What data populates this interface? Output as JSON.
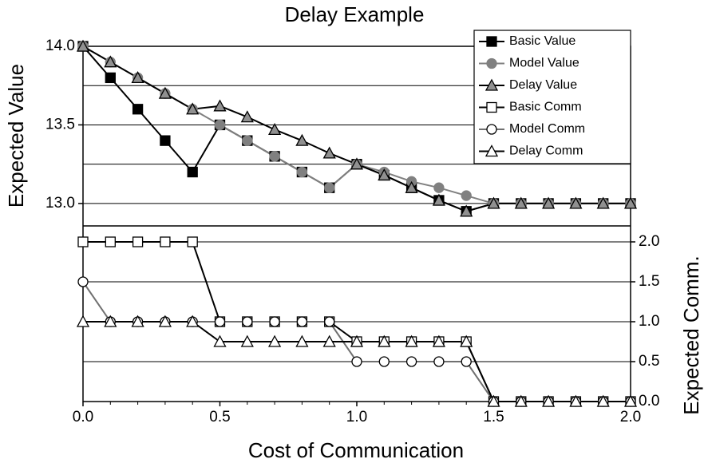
{
  "chart_data": {
    "type": "line",
    "title": "Delay Example",
    "xlabel": "Cost of Communication",
    "ylabel": "Expected Value",
    "y2label": "Expected Comm.",
    "x": [
      0,
      0.1,
      0.2,
      0.3,
      0.4,
      0.5,
      0.6,
      0.7,
      0.8,
      0.9,
      1.0,
      1.1,
      1.2,
      1.3,
      1.4,
      1.5,
      1.6,
      1.7,
      1.8,
      1.9,
      2.0
    ],
    "xlim": [
      0,
      2.0
    ],
    "xticks": [
      {
        "value": 0,
        "label": "0.0"
      },
      0.5,
      {
        "value": 1,
        "label": "1.0"
      },
      1.5,
      {
        "value": 2,
        "label": "2.0"
      }
    ],
    "ylim": [
      11.74,
      14.0
    ],
    "yticks": [
      {
        "value": 13,
        "label": "13.0"
      },
      13.5,
      {
        "value": 14,
        "label": "14.0"
      }
    ],
    "yminor": [
      13.25,
      13.75
    ],
    "y2lim": [
      0,
      4.45
    ],
    "y2ticks": [
      {
        "value": 0,
        "label": "0.0"
      },
      0.5,
      {
        "value": 1,
        "label": "1.0"
      },
      1.5,
      {
        "value": 2,
        "label": "2.0"
      }
    ],
    "grid": true,
    "legend": "upper right",
    "series": [
      {
        "name": "Basic Value",
        "color": "#000000",
        "marker": "square",
        "marker_fill": "#000000",
        "values": [
          14.0,
          13.8,
          13.6,
          13.4,
          13.2,
          13.5,
          13.4,
          13.3,
          13.2,
          13.1,
          13.25,
          13.18,
          13.1,
          13.02,
          12.95,
          13,
          13,
          13,
          13,
          13,
          13
        ]
      },
      {
        "name": "Model Value",
        "color": "#808080",
        "marker": "circle",
        "marker_fill": "#808080",
        "values": [
          14.0,
          13.9,
          13.8,
          13.7,
          13.6,
          13.5,
          13.4,
          13.3,
          13.2,
          13.1,
          13.25,
          13.2,
          13.14,
          13.1,
          13.05,
          13,
          13,
          13,
          13,
          13,
          13
        ]
      },
      {
        "name": "Delay Value",
        "color": "#000000",
        "marker": "triangle",
        "marker_fill": "#909090",
        "values": [
          14.0,
          13.9,
          13.8,
          13.7,
          13.6,
          13.62,
          13.55,
          13.47,
          13.4,
          13.32,
          13.25,
          13.18,
          13.1,
          13.02,
          12.95,
          13,
          13,
          13,
          13,
          13,
          13
        ]
      },
      {
        "name": "Basic Comm",
        "color": "#000000",
        "marker": "square",
        "marker_fill": "#ffffff",
        "axis": "y2",
        "values": [
          2,
          2,
          2,
          2,
          2,
          1,
          1,
          1,
          1,
          1,
          0.75,
          0.75,
          0.75,
          0.75,
          0.75,
          0,
          0,
          0,
          0,
          0,
          0
        ]
      },
      {
        "name": "Model Comm",
        "color": "#707070",
        "marker": "circle",
        "marker_fill": "#ffffff",
        "axis": "y2",
        "values": [
          1.5,
          1,
          1,
          1,
          1,
          1,
          1,
          1,
          1,
          1,
          0.5,
          0.5,
          0.5,
          0.5,
          0.5,
          0,
          0,
          0,
          0,
          0,
          0
        ]
      },
      {
        "name": "Delay Comm",
        "color": "#000000",
        "marker": "triangle",
        "marker_fill": "#ffffff",
        "axis": "y2",
        "values": [
          1,
          1,
          1,
          1,
          1,
          0.75,
          0.75,
          0.75,
          0.75,
          0.75,
          0.75,
          0.75,
          0.75,
          0.75,
          0.75,
          0,
          0,
          0,
          0,
          0,
          0
        ]
      }
    ]
  }
}
